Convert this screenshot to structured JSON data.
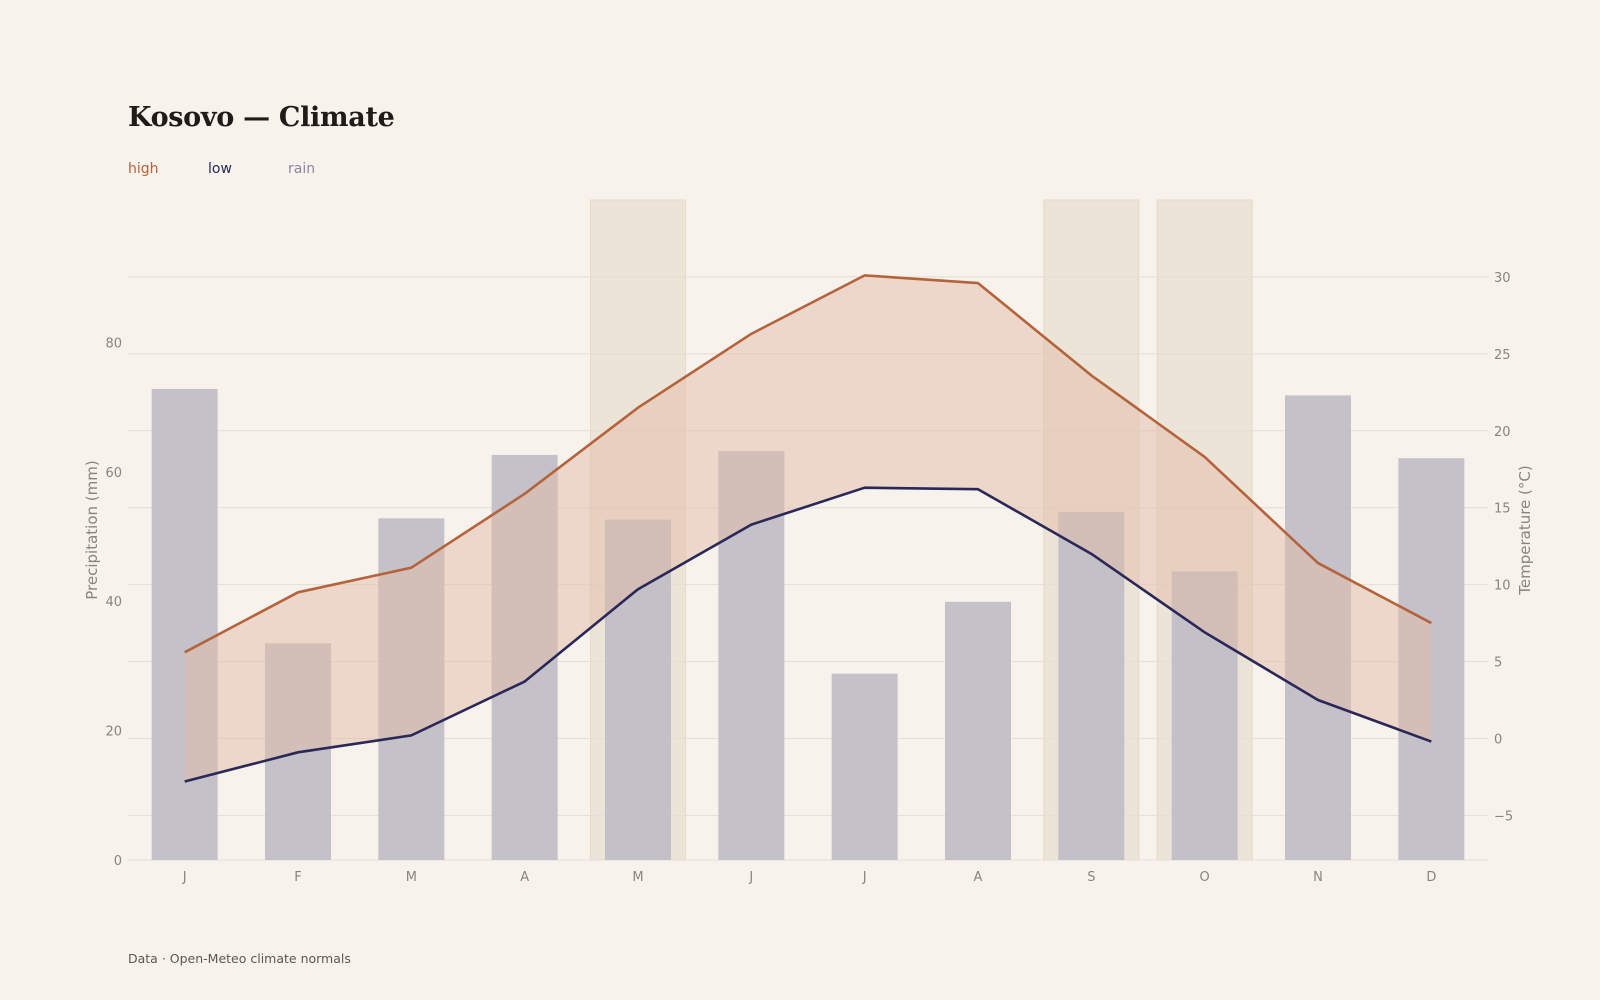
{
  "title": "Kosovo — Climate",
  "source": "Data · Open-Meteo climate normals",
  "legend": [
    {
      "label": "high",
      "color": "#b5633c"
    },
    {
      "label": "low",
      "color": "#2a2858"
    },
    {
      "label": "rain",
      "color": "#8c87a3"
    }
  ],
  "chart_data": {
    "type": "bar",
    "categories": [
      "J",
      "F",
      "M",
      "A",
      "M",
      "J",
      "J",
      "A",
      "S",
      "O",
      "N",
      "D"
    ],
    "highlighted_categories": [
      4,
      8,
      9
    ],
    "series": [
      {
        "name": "rain",
        "type": "bar",
        "axis": "left",
        "values": [
          72.8,
          33.5,
          52.8,
          62.6,
          52.6,
          63.2,
          28.8,
          39.9,
          53.8,
          44.6,
          71.8,
          62.1
        ]
      },
      {
        "name": "high",
        "type": "line",
        "axis": "right",
        "values": [
          5.6,
          9.5,
          11.1,
          15.9,
          21.5,
          26.3,
          30.1,
          29.6,
          23.6,
          18.3,
          11.4,
          7.5
        ]
      },
      {
        "name": "low",
        "type": "line",
        "axis": "right",
        "values": [
          -2.8,
          -0.9,
          0.2,
          3.7,
          9.7,
          13.9,
          16.3,
          16.2,
          12.0,
          6.9,
          2.5,
          -0.2
        ]
      }
    ],
    "y_left": {
      "label": "Precipitation (mm)",
      "ticks": [
        0,
        20,
        40,
        60,
        80
      ],
      "range": [
        0,
        102
      ]
    },
    "y_right": {
      "label": "Temperature (°C)",
      "ticks": [
        -5,
        0,
        5,
        10,
        15,
        20,
        25,
        30
      ],
      "range": [
        -7.9,
        35
      ]
    },
    "grid": true,
    "legend_position": "top-left"
  },
  "colors": {
    "background": "#f7f2ec",
    "rain_bar": "#c2bec6",
    "high_line": "#b5633c",
    "low_line": "#2a2858",
    "band_fill": "#e2bba8",
    "highlight": "#ede4d8",
    "grid": "#e6ddd3",
    "tick_text": "#8a847d"
  }
}
